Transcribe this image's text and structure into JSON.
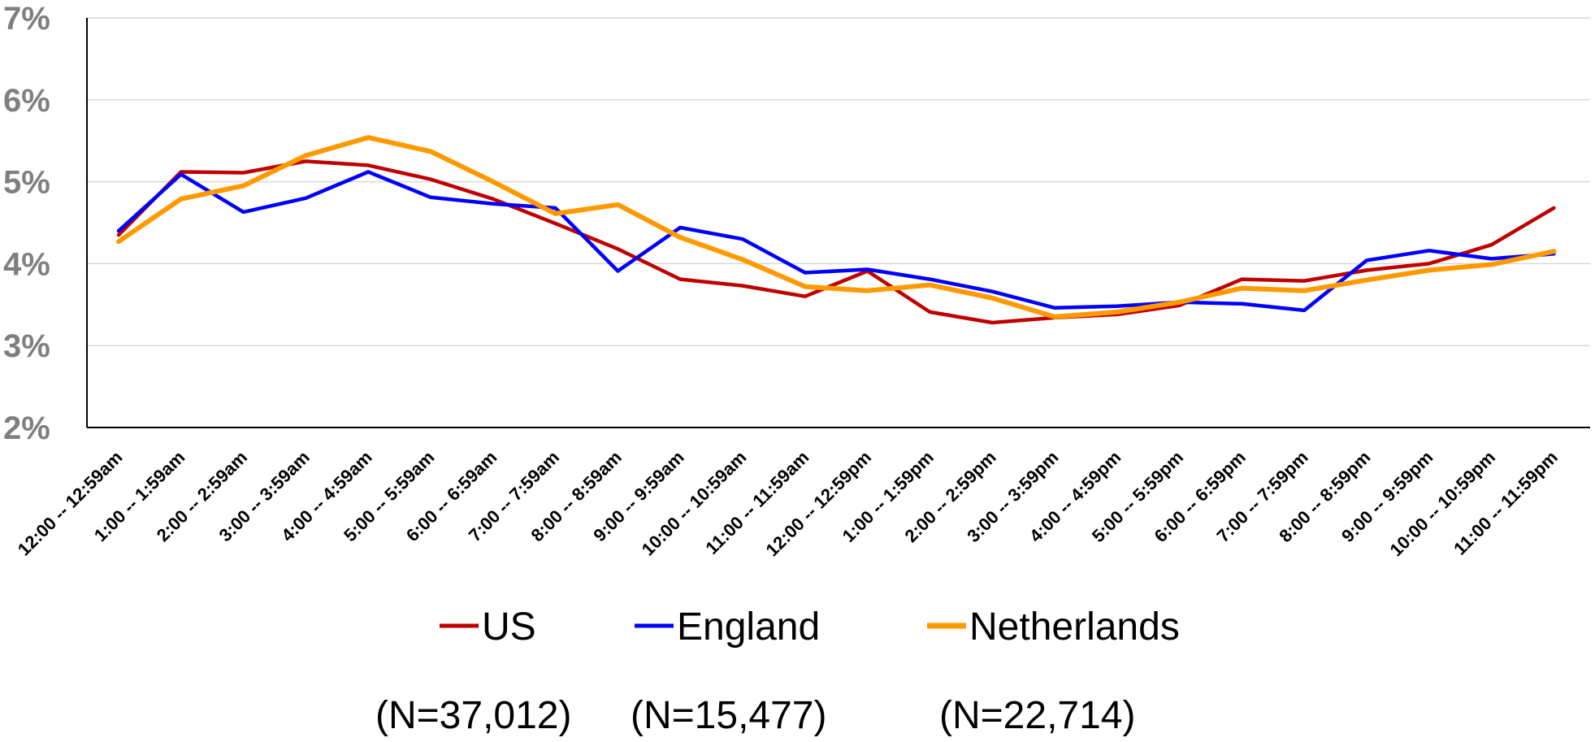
{
  "chart_data": {
    "type": "line",
    "categories": [
      "12:00 -- 12:59am",
      "1:00 -- 1:59am",
      "2:00 -- 2:59am",
      "3:00 -- 3:59am",
      "4:00 -- 4:59am",
      "5:00 -- 5:59am",
      "6:00 -- 6:59am",
      "7:00 -- 7:59am",
      "8:00 -- 8:59am",
      "9:00 -- 9:59am",
      "10:00 -- 10:59am",
      "11:00 -- 11:59am",
      "12:00 -- 12:59pm",
      "1:00 -- 1:59pm",
      "2:00 -- 2:59pm",
      "3:00 -- 3:59pm",
      "4:00 -- 4:59pm",
      "5:00 -- 5:59pm",
      "6:00 -- 6:59pm",
      "7:00 -- 7:59pm",
      "8:00 -- 8:59pm",
      "9:00 -- 9:59pm",
      "10:00 -- 10:59pm",
      "11:00 -- 11:59pm"
    ],
    "series": [
      {
        "name": "US",
        "count_label": "(N=37,012)",
        "color": "#c00000",
        "values": [
          4.35,
          5.12,
          5.11,
          5.25,
          5.2,
          5.03,
          4.79,
          4.49,
          4.18,
          3.81,
          3.73,
          3.6,
          3.91,
          3.41,
          3.28,
          3.34,
          3.38,
          3.49,
          3.81,
          3.79,
          3.92,
          4.0,
          4.23,
          4.68
        ]
      },
      {
        "name": "England",
        "count_label": "(N=15,477)",
        "color": "#0000ff",
        "values": [
          4.4,
          5.09,
          4.63,
          4.8,
          5.12,
          4.81,
          4.73,
          4.68,
          3.91,
          4.44,
          4.3,
          3.89,
          3.93,
          3.81,
          3.66,
          3.46,
          3.48,
          3.53,
          3.51,
          3.43,
          4.04,
          4.16,
          4.06,
          4.12
        ]
      },
      {
        "name": "Netherlands",
        "count_label": "(N=22,714)",
        "color": "#ff9900",
        "values": [
          4.27,
          4.79,
          4.95,
          5.32,
          5.54,
          5.37,
          5.0,
          4.61,
          4.72,
          4.32,
          4.05,
          3.72,
          3.67,
          3.74,
          3.58,
          3.35,
          3.41,
          3.53,
          3.7,
          3.67,
          3.8,
          3.92,
          3.99,
          4.15
        ]
      }
    ],
    "yticks": [
      "2%",
      "3%",
      "4%",
      "5%",
      "6%",
      "7%"
    ],
    "ylim": [
      2,
      7
    ],
    "grid": true,
    "legend_position": "bottom"
  }
}
